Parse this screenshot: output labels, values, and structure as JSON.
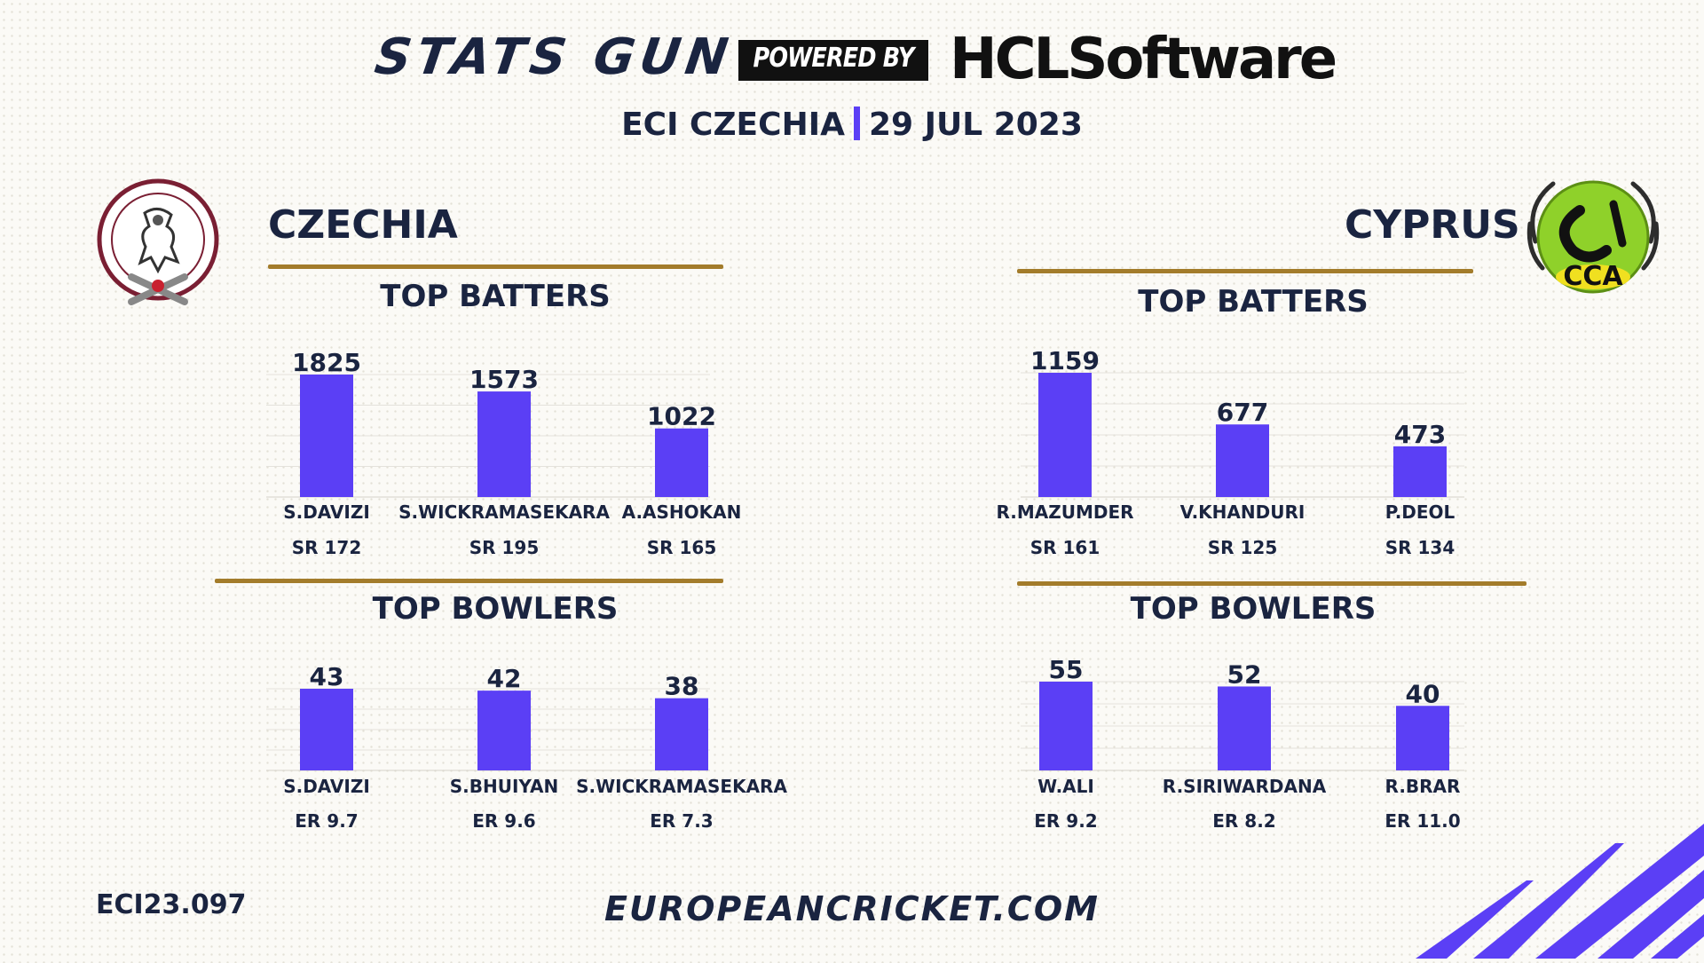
{
  "header": {
    "brand": "STATS GUN",
    "powered_by": "POWERED BY",
    "sponsor": "HCLSoftware",
    "event": "ECI CZECHIA",
    "date": "29 JUL 2023"
  },
  "teams": {
    "left": {
      "name": "CZECHIA",
      "logo_icon": "czech-cricket-union-crest"
    },
    "right": {
      "name": "CYPRUS",
      "logo_icon": "cyprus-cricket-association-crest",
      "logo_text": "CCA"
    }
  },
  "colors": {
    "bar": "#5b3ff5",
    "gold": "#a37c2b",
    "navy": "#1a2440"
  },
  "chart_data": [
    {
      "type": "bar",
      "team": "CZECHIA",
      "title": "TOP BATTERS",
      "categories": [
        "S.DAVIZI",
        "S.WICKRAMASEKARA",
        "A.ASHOKAN"
      ],
      "values": [
        1825,
        1573,
        1022
      ],
      "sublabels": [
        "SR 172",
        "SR 195",
        "SR 165"
      ],
      "ylim": [
        0,
        1825
      ]
    },
    {
      "type": "bar",
      "team": "CZECHIA",
      "title": "TOP BOWLERS",
      "categories": [
        "S.DAVIZI",
        "S.BHUIYAN",
        "S.WICKRAMASEKARA"
      ],
      "values": [
        43,
        42,
        38
      ],
      "sublabels": [
        "ER 9.7",
        "ER 9.6",
        "ER 7.3"
      ],
      "ylim": [
        0,
        43
      ]
    },
    {
      "type": "bar",
      "team": "CYPRUS",
      "title": "TOP BATTERS",
      "categories": [
        "R.MAZUMDER",
        "V.KHANDURI",
        "P.DEOL"
      ],
      "values": [
        1159,
        677,
        473
      ],
      "sublabels": [
        "SR 161",
        "SR 125",
        "SR 134"
      ],
      "ylim": [
        0,
        1159
      ]
    },
    {
      "type": "bar",
      "team": "CYPRUS",
      "title": "TOP BOWLERS",
      "categories": [
        "W.ALI",
        "R.SIRIWARDANA",
        "R.BRAR"
      ],
      "values": [
        55,
        52,
        40
      ],
      "sublabels": [
        "ER 9.2",
        "ER 8.2",
        "ER 11.0"
      ],
      "ylim": [
        0,
        55
      ]
    }
  ],
  "footer": {
    "code": "ECI23.097",
    "url": "EUROPEANCRICKET.COM"
  }
}
